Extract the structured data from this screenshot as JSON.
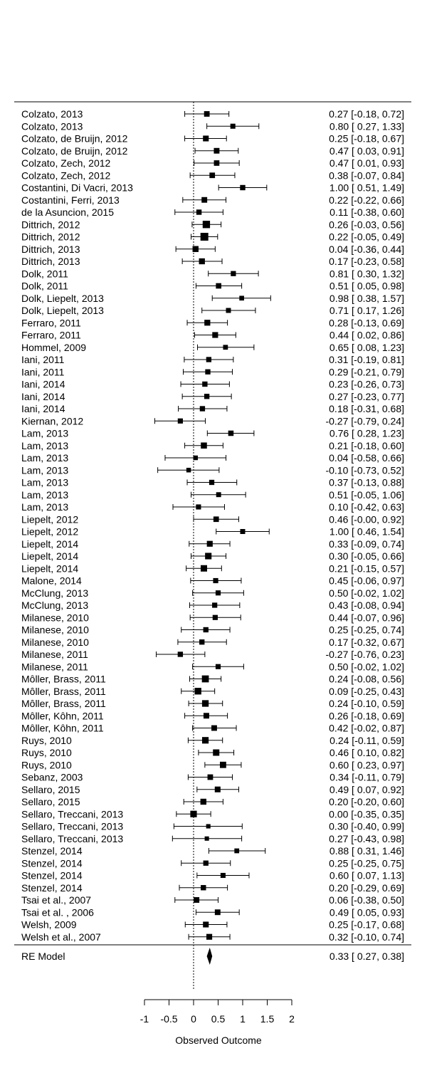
{
  "chart_data": {
    "type": "forest",
    "xlabel": "Observed Outcome",
    "xlim": [
      -1,
      2
    ],
    "xticks": [
      -1,
      -0.5,
      0,
      0.5,
      1,
      1.5,
      2
    ],
    "xtick_labels": [
      "-1",
      "-0.5",
      "0",
      "0.5",
      "1",
      "1.5",
      "2"
    ],
    "reference_line": 0,
    "studies": [
      {
        "label": "Colzato, 2013",
        "est": 0.27,
        "lo": -0.18,
        "hi": 0.72,
        "text": "0.27 [-0.18, 0.72]"
      },
      {
        "label": "Colzato, 2013",
        "est": 0.8,
        "lo": 0.27,
        "hi": 1.33,
        "text": "0.80 [ 0.27, 1.33]"
      },
      {
        "label": "Colzato, de Bruijn, 2012",
        "est": 0.25,
        "lo": -0.18,
        "hi": 0.67,
        "text": "0.25 [-0.18, 0.67]"
      },
      {
        "label": "Colzato, de Bruijn, 2012",
        "est": 0.47,
        "lo": 0.03,
        "hi": 0.91,
        "text": "0.47 [ 0.03, 0.91]"
      },
      {
        "label": "Colzato, Zech, 2012",
        "est": 0.47,
        "lo": 0.01,
        "hi": 0.93,
        "text": "0.47 [ 0.01, 0.93]"
      },
      {
        "label": "Colzato, Zech, 2012",
        "est": 0.38,
        "lo": -0.07,
        "hi": 0.84,
        "text": "0.38 [-0.07, 0.84]"
      },
      {
        "label": "Costantini, Di Vacri, 2013",
        "est": 1.0,
        "lo": 0.51,
        "hi": 1.49,
        "text": "1.00 [ 0.51, 1.49]"
      },
      {
        "label": "Costantini, Ferri, 2013",
        "est": 0.22,
        "lo": -0.22,
        "hi": 0.66,
        "text": "0.22 [-0.22, 0.66]"
      },
      {
        "label": "de la Asuncion, 2015",
        "est": 0.11,
        "lo": -0.38,
        "hi": 0.6,
        "text": "0.11 [-0.38, 0.60]"
      },
      {
        "label": "Dittrich, 2012",
        "est": 0.26,
        "lo": -0.03,
        "hi": 0.56,
        "text": "0.26 [-0.03, 0.56]"
      },
      {
        "label": "Dittrich, 2012",
        "est": 0.22,
        "lo": -0.05,
        "hi": 0.49,
        "text": "0.22 [-0.05, 0.49]"
      },
      {
        "label": "Dittrich, 2013",
        "est": 0.04,
        "lo": -0.36,
        "hi": 0.44,
        "text": "0.04 [-0.36, 0.44]"
      },
      {
        "label": "Dittrich, 2013",
        "est": 0.17,
        "lo": -0.23,
        "hi": 0.58,
        "text": "0.17 [-0.23, 0.58]"
      },
      {
        "label": "Dolk, 2011",
        "est": 0.81,
        "lo": 0.3,
        "hi": 1.32,
        "text": "0.81 [ 0.30, 1.32]"
      },
      {
        "label": "Dolk, 2011",
        "est": 0.51,
        "lo": 0.05,
        "hi": 0.98,
        "text": "0.51 [ 0.05, 0.98]"
      },
      {
        "label": "Dolk, Liepelt, 2013",
        "est": 0.98,
        "lo": 0.38,
        "hi": 1.57,
        "text": "0.98 [ 0.38, 1.57]"
      },
      {
        "label": "Dolk, Liepelt, 2013",
        "est": 0.71,
        "lo": 0.17,
        "hi": 1.26,
        "text": "0.71 [ 0.17, 1.26]"
      },
      {
        "label": "Ferraro, 2011",
        "est": 0.28,
        "lo": -0.13,
        "hi": 0.69,
        "text": "0.28 [-0.13, 0.69]"
      },
      {
        "label": "Ferraro, 2011",
        "est": 0.44,
        "lo": 0.02,
        "hi": 0.86,
        "text": "0.44 [ 0.02, 0.86]"
      },
      {
        "label": "Hommel, 2009",
        "est": 0.65,
        "lo": 0.08,
        "hi": 1.23,
        "text": "0.65 [ 0.08, 1.23]"
      },
      {
        "label": "Iani, 2011",
        "est": 0.31,
        "lo": -0.19,
        "hi": 0.81,
        "text": "0.31 [-0.19, 0.81]"
      },
      {
        "label": "Iani, 2011",
        "est": 0.29,
        "lo": -0.21,
        "hi": 0.79,
        "text": "0.29 [-0.21, 0.79]"
      },
      {
        "label": "Iani, 2014",
        "est": 0.23,
        "lo": -0.26,
        "hi": 0.73,
        "text": "0.23 [-0.26, 0.73]"
      },
      {
        "label": "Iani, 2014",
        "est": 0.27,
        "lo": -0.23,
        "hi": 0.77,
        "text": "0.27 [-0.23, 0.77]"
      },
      {
        "label": "Iani, 2014",
        "est": 0.18,
        "lo": -0.31,
        "hi": 0.68,
        "text": "0.18 [-0.31, 0.68]"
      },
      {
        "label": "Kiernan, 2012",
        "est": -0.27,
        "lo": -0.79,
        "hi": 0.24,
        "text": "-0.27 [-0.79, 0.24]"
      },
      {
        "label": "Lam, 2013",
        "est": 0.76,
        "lo": 0.28,
        "hi": 1.23,
        "text": "0.76 [ 0.28, 1.23]"
      },
      {
        "label": "Lam, 2013",
        "est": 0.21,
        "lo": -0.18,
        "hi": 0.6,
        "text": "0.21 [-0.18, 0.60]"
      },
      {
        "label": "Lam, 2013",
        "est": 0.04,
        "lo": -0.58,
        "hi": 0.66,
        "text": "0.04 [-0.58, 0.66]"
      },
      {
        "label": "Lam, 2013",
        "est": -0.1,
        "lo": -0.73,
        "hi": 0.52,
        "text": "-0.10 [-0.73, 0.52]"
      },
      {
        "label": "Lam, 2013",
        "est": 0.37,
        "lo": -0.13,
        "hi": 0.88,
        "text": "0.37 [-0.13, 0.88]"
      },
      {
        "label": "Lam, 2013",
        "est": 0.51,
        "lo": -0.05,
        "hi": 1.06,
        "text": "0.51 [-0.05, 1.06]"
      },
      {
        "label": "Lam, 2013",
        "est": 0.1,
        "lo": -0.42,
        "hi": 0.63,
        "text": "0.10 [-0.42, 0.63]"
      },
      {
        "label": "Liepelt, 2012",
        "est": 0.46,
        "lo": -0.0,
        "hi": 0.92,
        "text": "0.46 [-0.00, 0.92]"
      },
      {
        "label": "Liepelt, 2012",
        "est": 1.0,
        "lo": 0.46,
        "hi": 1.54,
        "text": "1.00 [ 0.46, 1.54]"
      },
      {
        "label": "Liepelt, 2014",
        "est": 0.33,
        "lo": -0.09,
        "hi": 0.74,
        "text": "0.33 [-0.09, 0.74]"
      },
      {
        "label": "Liepelt, 2014",
        "est": 0.3,
        "lo": -0.05,
        "hi": 0.66,
        "text": "0.30 [-0.05, 0.66]"
      },
      {
        "label": "Liepelt, 2014",
        "est": 0.21,
        "lo": -0.15,
        "hi": 0.57,
        "text": "0.21 [-0.15, 0.57]"
      },
      {
        "label": "Malone, 2014",
        "est": 0.45,
        "lo": -0.06,
        "hi": 0.97,
        "text": "0.45 [-0.06, 0.97]"
      },
      {
        "label": "McClung, 2013",
        "est": 0.5,
        "lo": -0.02,
        "hi": 1.02,
        "text": "0.50 [-0.02, 1.02]"
      },
      {
        "label": "McClung, 2013",
        "est": 0.43,
        "lo": -0.08,
        "hi": 0.94,
        "text": "0.43 [-0.08, 0.94]"
      },
      {
        "label": "Milanese, 2010",
        "est": 0.44,
        "lo": -0.07,
        "hi": 0.96,
        "text": "0.44 [-0.07, 0.96]"
      },
      {
        "label": "Milanese, 2010",
        "est": 0.25,
        "lo": -0.25,
        "hi": 0.74,
        "text": "0.25 [-0.25, 0.74]"
      },
      {
        "label": "Milanese, 2010",
        "est": 0.17,
        "lo": -0.32,
        "hi": 0.67,
        "text": "0.17 [-0.32, 0.67]"
      },
      {
        "label": "Milanese, 2011",
        "est": -0.27,
        "lo": -0.76,
        "hi": 0.23,
        "text": "-0.27 [-0.76, 0.23]"
      },
      {
        "label": "Milanese, 2011",
        "est": 0.5,
        "lo": -0.02,
        "hi": 1.02,
        "text": "0.50 [-0.02, 1.02]"
      },
      {
        "label": "Môller, Brass, 2011",
        "est": 0.24,
        "lo": -0.08,
        "hi": 0.56,
        "text": "0.24 [-0.08, 0.56]"
      },
      {
        "label": "Môller, Brass, 2011",
        "est": 0.09,
        "lo": -0.25,
        "hi": 0.43,
        "text": "0.09 [-0.25, 0.43]"
      },
      {
        "label": "Môller, Brass, 2011",
        "est": 0.24,
        "lo": -0.1,
        "hi": 0.59,
        "text": "0.24 [-0.10, 0.59]"
      },
      {
        "label": "Môller, Kôhn, 2011",
        "est": 0.26,
        "lo": -0.18,
        "hi": 0.69,
        "text": "0.26 [-0.18, 0.69]"
      },
      {
        "label": "Môller, Kôhn, 2011",
        "est": 0.42,
        "lo": -0.02,
        "hi": 0.87,
        "text": "0.42 [-0.02, 0.87]"
      },
      {
        "label": "Ruys, 2010",
        "est": 0.24,
        "lo": -0.11,
        "hi": 0.59,
        "text": "0.24 [-0.11, 0.59]"
      },
      {
        "label": "Ruys, 2010",
        "est": 0.46,
        "lo": 0.1,
        "hi": 0.82,
        "text": "0.46 [ 0.10, 0.82]"
      },
      {
        "label": "Ruys, 2010",
        "est": 0.6,
        "lo": 0.23,
        "hi": 0.97,
        "text": "0.60 [ 0.23, 0.97]"
      },
      {
        "label": "Sebanz, 2003",
        "est": 0.34,
        "lo": -0.11,
        "hi": 0.79,
        "text": "0.34 [-0.11, 0.79]"
      },
      {
        "label": "Sellaro, 2015",
        "est": 0.49,
        "lo": 0.07,
        "hi": 0.92,
        "text": "0.49 [ 0.07, 0.92]"
      },
      {
        "label": "Sellaro, 2015",
        "est": 0.2,
        "lo": -0.2,
        "hi": 0.6,
        "text": "0.20 [-0.20, 0.60]"
      },
      {
        "label": "Sellaro, Treccani, 2013",
        "est": 0.0,
        "lo": -0.35,
        "hi": 0.35,
        "text": "0.00 [-0.35, 0.35]"
      },
      {
        "label": "Sellaro, Treccani, 2013",
        "est": 0.3,
        "lo": -0.4,
        "hi": 0.99,
        "text": "0.30 [-0.40, 0.99]"
      },
      {
        "label": "Sellaro, Treccani, 2013",
        "est": 0.27,
        "lo": -0.43,
        "hi": 0.98,
        "text": "0.27 [-0.43, 0.98]"
      },
      {
        "label": "Stenzel, 2014",
        "est": 0.88,
        "lo": 0.31,
        "hi": 1.46,
        "text": "0.88 [ 0.31, 1.46]"
      },
      {
        "label": "Stenzel, 2014",
        "est": 0.25,
        "lo": -0.25,
        "hi": 0.75,
        "text": "0.25 [-0.25, 0.75]"
      },
      {
        "label": "Stenzel, 2014",
        "est": 0.6,
        "lo": 0.07,
        "hi": 1.13,
        "text": "0.60 [ 0.07, 1.13]"
      },
      {
        "label": "Stenzel, 2014",
        "est": 0.2,
        "lo": -0.29,
        "hi": 0.69,
        "text": "0.20 [-0.29, 0.69]"
      },
      {
        "label": "Tsai et al., 2007",
        "est": 0.06,
        "lo": -0.38,
        "hi": 0.5,
        "text": "0.06 [-0.38, 0.50]"
      },
      {
        "label": "Tsai et al. , 2006",
        "est": 0.49,
        "lo": 0.05,
        "hi": 0.93,
        "text": "0.49 [ 0.05, 0.93]"
      },
      {
        "label": "Welsh, 2009",
        "est": 0.25,
        "lo": -0.17,
        "hi": 0.68,
        "text": "0.25 [-0.17, 0.68]"
      },
      {
        "label": "Welsh et al., 2007",
        "est": 0.32,
        "lo": -0.1,
        "hi": 0.74,
        "text": "0.32 [-0.10, 0.74]"
      }
    ],
    "summary": {
      "label": "RE Model",
      "est": 0.33,
      "lo": 0.27,
      "hi": 0.38,
      "text": "0.33 [ 0.27, 0.38]"
    }
  }
}
